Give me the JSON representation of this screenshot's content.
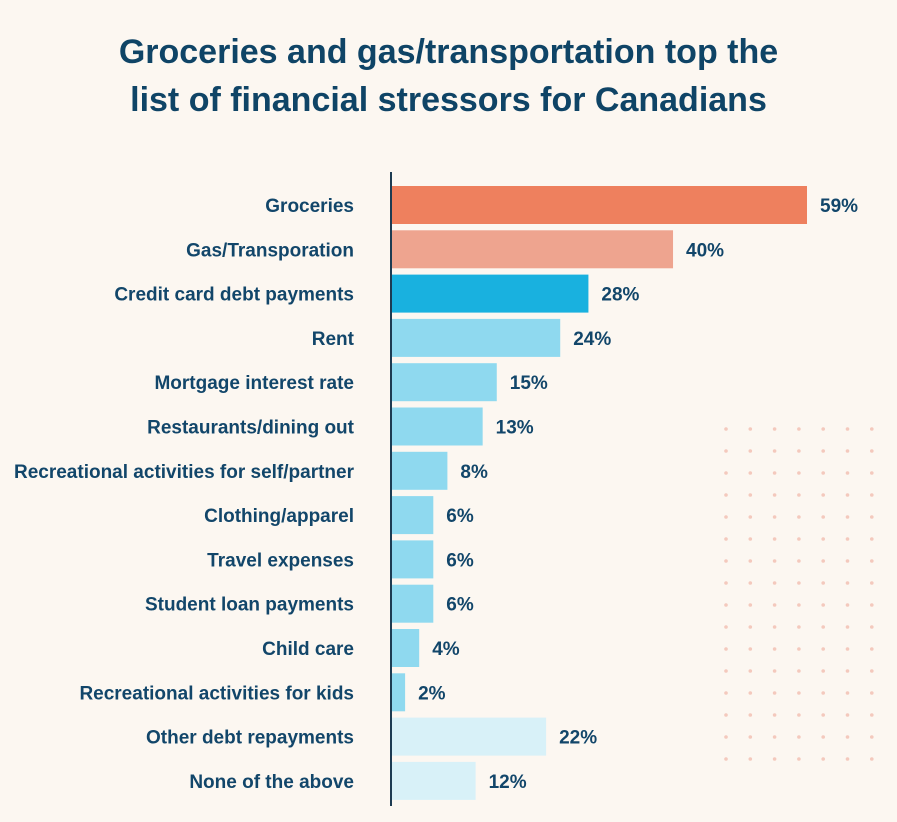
{
  "chart_data": {
    "type": "bar",
    "orientation": "horizontal",
    "title_lines": [
      "Groceries and gas/transportation top the",
      "list of financial stressors for Canadians"
    ],
    "categories": [
      "Groceries",
      "Gas/Transporation",
      "Credit card debt payments",
      "Rent",
      "Mortgage interest rate",
      "Restaurants/dining out",
      "Recreational activities for self/partner",
      "Clothing/apparel",
      "Travel expenses",
      "Student loan payments",
      "Child care",
      "Recreational activities for kids",
      "Other debt repayments",
      "None of the above"
    ],
    "values": [
      59,
      40,
      28,
      24,
      15,
      13,
      8,
      6,
      6,
      6,
      4,
      2,
      22,
      12
    ],
    "value_labels": [
      "59%",
      "40%",
      "28%",
      "24%",
      "15%",
      "13%",
      "8%",
      "6%",
      "6%",
      "6%",
      "4%",
      "2%",
      "22%",
      "12%"
    ],
    "bar_colors": [
      "#ee805e",
      "#eea48f",
      "#19b1df",
      "#8fd9ef",
      "#8fd9ef",
      "#8fd9ef",
      "#8fd9ef",
      "#8fd9ef",
      "#8fd9ef",
      "#8fd9ef",
      "#8fd9ef",
      "#8fd9ef",
      "#d8f1f8",
      "#d8f1f8"
    ],
    "xlim": [
      0,
      59
    ],
    "grid": false,
    "legend": "none"
  },
  "colors": {
    "background": "#fcf7f1",
    "title": "#0f4466",
    "label": "#12466a",
    "axis": "#1d3b52",
    "dots": "#f4c9bd"
  }
}
